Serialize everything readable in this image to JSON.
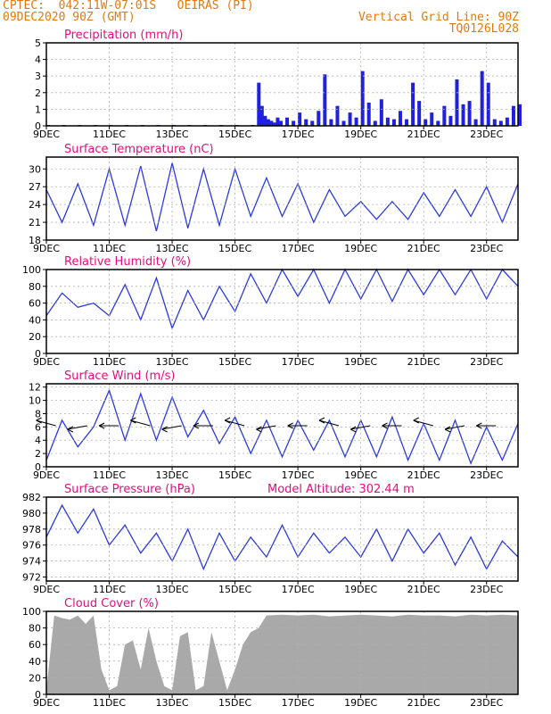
{
  "header": {
    "line1": "CPTEC:  042:11W-07:01S   OEIRAS (PI)",
    "line2": "09DEC2020 90Z (GMT)",
    "grid_note": "Vertical Grid Line: 90Z",
    "code": "TQ0126L028"
  },
  "colors": {
    "header": "#e07a10",
    "title": "#e0107a",
    "series": "#2a3ae0",
    "bars": "#2020e0",
    "cloud": "#a9a9a9",
    "grid": "#b0b0b0"
  },
  "x_ticks": [
    "9DEC",
    "11DEC",
    "13DEC",
    "15DEC",
    "17DEC",
    "19DEC",
    "21DEC",
    "23DEC"
  ],
  "chart_data": [
    {
      "type": "bar",
      "title": "Precipitation (mm/h)",
      "ylim": [
        0,
        5
      ],
      "yticks": [
        0,
        1,
        2,
        3,
        4,
        5
      ],
      "x_units": "days since 9DEC 00Z",
      "x": [
        0.0,
        0.5,
        1.0,
        1.5,
        2.0,
        2.5,
        3.0,
        3.5,
        4.0,
        4.5,
        5.0,
        5.5,
        6.0,
        6.5,
        6.7,
        6.8,
        6.9,
        7.0,
        7.1,
        7.2,
        7.3,
        7.4,
        7.6,
        7.8,
        8.0,
        8.2,
        8.4,
        8.6,
        8.8,
        9.0,
        9.2,
        9.4,
        9.6,
        9.8,
        10.0,
        10.2,
        10.4,
        10.6,
        10.8,
        11.0,
        11.2,
        11.4,
        11.6,
        11.8,
        12.0,
        12.2,
        12.4,
        12.6,
        12.8,
        13.0,
        13.2,
        13.4,
        13.6,
        13.8,
        14.0,
        14.2,
        14.4,
        14.6,
        14.8,
        15.0
      ],
      "values": [
        0.05,
        0.05,
        0.05,
        0.05,
        0.05,
        0.05,
        0.05,
        0.05,
        0.05,
        0.05,
        0.05,
        0.05,
        0.05,
        0.05,
        2.6,
        1.2,
        0.6,
        0.4,
        0.3,
        0.2,
        0.5,
        0.3,
        0.5,
        0.3,
        0.8,
        0.4,
        0.3,
        0.9,
        3.1,
        0.4,
        1.2,
        0.3,
        0.8,
        0.5,
        3.3,
        1.4,
        0.3,
        1.6,
        0.5,
        0.4,
        0.9,
        0.4,
        2.6,
        1.5,
        0.4,
        0.8,
        0.3,
        1.2,
        0.6,
        2.8,
        1.3,
        1.5,
        0.4,
        3.3,
        2.6,
        0.4,
        0.3,
        0.5,
        1.2,
        1.3
      ]
    },
    {
      "type": "line",
      "title": "Surface Temperature (nC)",
      "ylim": [
        18,
        32
      ],
      "yticks": [
        18,
        21,
        24,
        27,
        30
      ],
      "x_units": "days since 9DEC 00Z",
      "x": [
        0.0,
        0.5,
        1.0,
        1.5,
        2.0,
        2.5,
        3.0,
        3.5,
        4.0,
        4.5,
        5.0,
        5.5,
        6.0,
        6.5,
        7.0,
        7.5,
        8.0,
        8.5,
        9.0,
        9.5,
        10.0,
        10.5,
        11.0,
        11.5,
        12.0,
        12.5,
        13.0,
        13.5,
        14.0,
        14.5,
        15.0
      ],
      "values": [
        26.5,
        21.0,
        27.5,
        20.5,
        30.0,
        20.5,
        30.5,
        19.5,
        31.0,
        20.0,
        30.0,
        20.5,
        30.0,
        22.0,
        28.5,
        22.0,
        27.5,
        21.0,
        26.5,
        22.0,
        24.5,
        21.5,
        24.5,
        21.5,
        26.0,
        22.0,
        26.5,
        22.0,
        27.0,
        21.0,
        27.5
      ]
    },
    {
      "type": "line",
      "title": "Relative Humidity (%)",
      "ylim": [
        0,
        100
      ],
      "yticks": [
        0,
        20,
        40,
        60,
        80,
        100
      ],
      "x_units": "days since 9DEC 00Z",
      "x": [
        0.0,
        0.5,
        1.0,
        1.5,
        2.0,
        2.5,
        3.0,
        3.5,
        4.0,
        4.5,
        5.0,
        5.5,
        6.0,
        6.5,
        7.0,
        7.5,
        8.0,
        8.5,
        9.0,
        9.5,
        10.0,
        10.5,
        11.0,
        11.5,
        12.0,
        12.5,
        13.0,
        13.5,
        14.0,
        14.5,
        15.0
      ],
      "values": [
        45,
        72,
        55,
        60,
        45,
        82,
        40,
        90,
        30,
        75,
        40,
        80,
        50,
        95,
        60,
        100,
        68,
        100,
        60,
        100,
        65,
        100,
        62,
        100,
        70,
        100,
        70,
        100,
        65,
        100,
        80
      ]
    },
    {
      "type": "line",
      "title": "Surface Wind (m/s)",
      "ylim": [
        0,
        12.5
      ],
      "yticks": [
        0,
        2,
        4,
        6,
        8,
        10,
        12
      ],
      "x_units": "days since 9DEC 00Z",
      "x": [
        0.0,
        0.5,
        1.0,
        1.5,
        2.0,
        2.5,
        3.0,
        3.5,
        4.0,
        4.5,
        5.0,
        5.5,
        6.0,
        6.5,
        7.0,
        7.5,
        8.0,
        8.5,
        9.0,
        9.5,
        10.0,
        10.5,
        11.0,
        11.5,
        12.0,
        12.5,
        13.0,
        13.5,
        14.0,
        14.5,
        15.0
      ],
      "values": [
        1.0,
        7.0,
        3.0,
        6.0,
        11.5,
        4.0,
        11.0,
        4.0,
        10.5,
        4.5,
        8.5,
        3.5,
        7.5,
        2.0,
        7.0,
        1.5,
        7.0,
        2.5,
        7.0,
        1.5,
        7.0,
        1.5,
        7.5,
        1.0,
        6.5,
        1.0,
        7.0,
        0.5,
        6.0,
        1.0,
        6.5
      ]
    },
    {
      "type": "line",
      "title": "Surface Pressure (hPa)",
      "annotation": "Model Altitude: 302.44 m",
      "ylim": [
        971.5,
        982
      ],
      "yticks": [
        972,
        974,
        976,
        978,
        980,
        982
      ],
      "x_units": "days since 9DEC 00Z",
      "x": [
        0.0,
        0.5,
        1.0,
        1.5,
        2.0,
        2.5,
        3.0,
        3.5,
        4.0,
        4.5,
        5.0,
        5.5,
        6.0,
        6.5,
        7.0,
        7.5,
        8.0,
        8.5,
        9.0,
        9.5,
        10.0,
        10.5,
        11.0,
        11.5,
        12.0,
        12.5,
        13.0,
        13.5,
        14.0,
        14.5,
        15.0
      ],
      "values": [
        977.0,
        981.0,
        977.5,
        980.5,
        976.0,
        978.5,
        975.0,
        977.5,
        974.0,
        978.0,
        973.0,
        977.5,
        974.0,
        977.0,
        974.5,
        978.5,
        974.5,
        977.5,
        975.0,
        977.0,
        974.5,
        978.0,
        974.0,
        978.0,
        975.0,
        977.5,
        973.5,
        977.0,
        973.0,
        976.5,
        974.5
      ]
    },
    {
      "type": "area",
      "title": "Cloud Cover (%)",
      "ylim": [
        0,
        100
      ],
      "yticks": [
        0,
        20,
        40,
        60,
        80,
        100
      ],
      "x_units": "days since 9DEC 00Z",
      "x": [
        0.0,
        0.25,
        0.5,
        0.75,
        1.0,
        1.25,
        1.5,
        1.75,
        2.0,
        2.25,
        2.5,
        2.75,
        3.0,
        3.25,
        3.5,
        3.75,
        4.0,
        4.25,
        4.5,
        4.75,
        5.0,
        5.25,
        5.5,
        5.75,
        6.0,
        6.25,
        6.5,
        6.75,
        7.0,
        7.5,
        8.0,
        8.5,
        9.0,
        9.5,
        10.0,
        10.5,
        11.0,
        11.5,
        12.0,
        12.5,
        13.0,
        13.5,
        14.0,
        14.5,
        15.0
      ],
      "values": [
        5,
        95,
        92,
        90,
        95,
        85,
        95,
        30,
        5,
        10,
        60,
        65,
        30,
        80,
        40,
        10,
        5,
        70,
        75,
        5,
        10,
        75,
        40,
        5,
        30,
        60,
        75,
        80,
        95,
        96,
        95,
        96,
        94,
        95,
        96,
        95,
        94,
        96,
        95,
        95,
        94,
        96,
        95,
        96,
        95
      ]
    }
  ]
}
